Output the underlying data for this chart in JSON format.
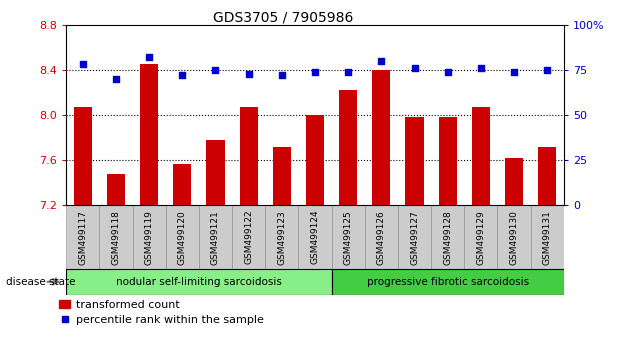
{
  "title": "GDS3705 / 7905986",
  "samples": [
    "GSM499117",
    "GSM499118",
    "GSM499119",
    "GSM499120",
    "GSM499121",
    "GSM499122",
    "GSM499123",
    "GSM499124",
    "GSM499125",
    "GSM499126",
    "GSM499127",
    "GSM499128",
    "GSM499129",
    "GSM499130",
    "GSM499131"
  ],
  "bar_values": [
    8.07,
    7.48,
    8.45,
    7.57,
    7.78,
    8.07,
    7.72,
    8.0,
    8.22,
    8.4,
    7.98,
    7.98,
    8.07,
    7.62,
    7.72
  ],
  "dot_values": [
    78,
    70,
    82,
    72,
    75,
    73,
    72,
    74,
    74,
    80,
    76,
    74,
    76,
    74,
    75
  ],
  "bar_color": "#cc0000",
  "dot_color": "#0000cc",
  "ylim_left": [
    7.2,
    8.8
  ],
  "ylim_right": [
    0,
    100
  ],
  "yticks_left": [
    7.2,
    7.6,
    8.0,
    8.4,
    8.8
  ],
  "yticks_right": [
    0,
    25,
    50,
    75,
    100
  ],
  "grid_values": [
    7.6,
    8.0,
    8.4
  ],
  "group1_label": "nodular self-limiting sarcoidosis",
  "group2_label": "progressive fibrotic sarcoidosis",
  "group1_count": 8,
  "disease_state_label": "disease state",
  "legend_bar_label": "transformed count",
  "legend_dot_label": "percentile rank within the sample",
  "bar_bottom": 7.2,
  "group1_color": "#88ee88",
  "group2_color": "#44cc44",
  "xticklabel_bg": "#cccccc",
  "plot_bg": "white",
  "fig_width": 6.3,
  "fig_height": 3.54,
  "dpi": 100
}
